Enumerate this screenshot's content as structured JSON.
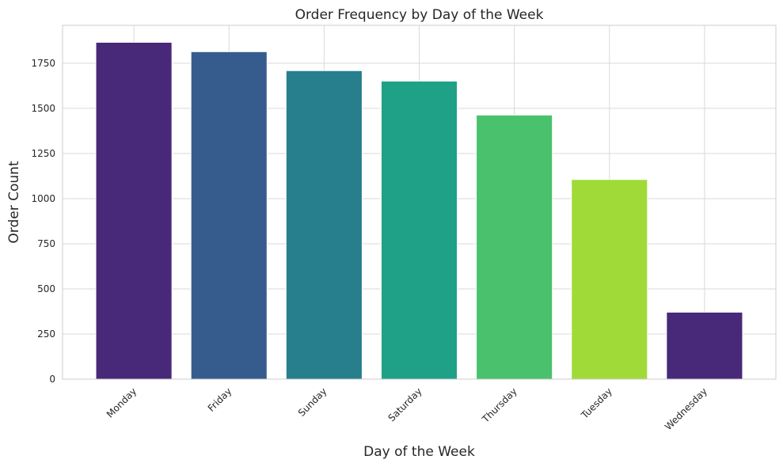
{
  "chart_data": {
    "type": "bar",
    "title": "Order Frequency by Day of the Week",
    "xlabel": "Day of the Week",
    "ylabel": "Order Count",
    "categories": [
      "Monday",
      "Friday",
      "Sunday",
      "Saturday",
      "Thursday",
      "Tuesday",
      "Wednesday"
    ],
    "values": [
      1866,
      1814,
      1709,
      1651,
      1463,
      1106,
      371
    ],
    "colors": [
      "#482878",
      "#365c8d",
      "#277f8e",
      "#1fa187",
      "#4ac16d",
      "#a0da39",
      "#482878"
    ],
    "ylim": [
      0,
      1960
    ],
    "yticks": [
      0,
      250,
      500,
      750,
      1000,
      1250,
      1500,
      1750
    ],
    "grid": true,
    "legend": "none"
  }
}
